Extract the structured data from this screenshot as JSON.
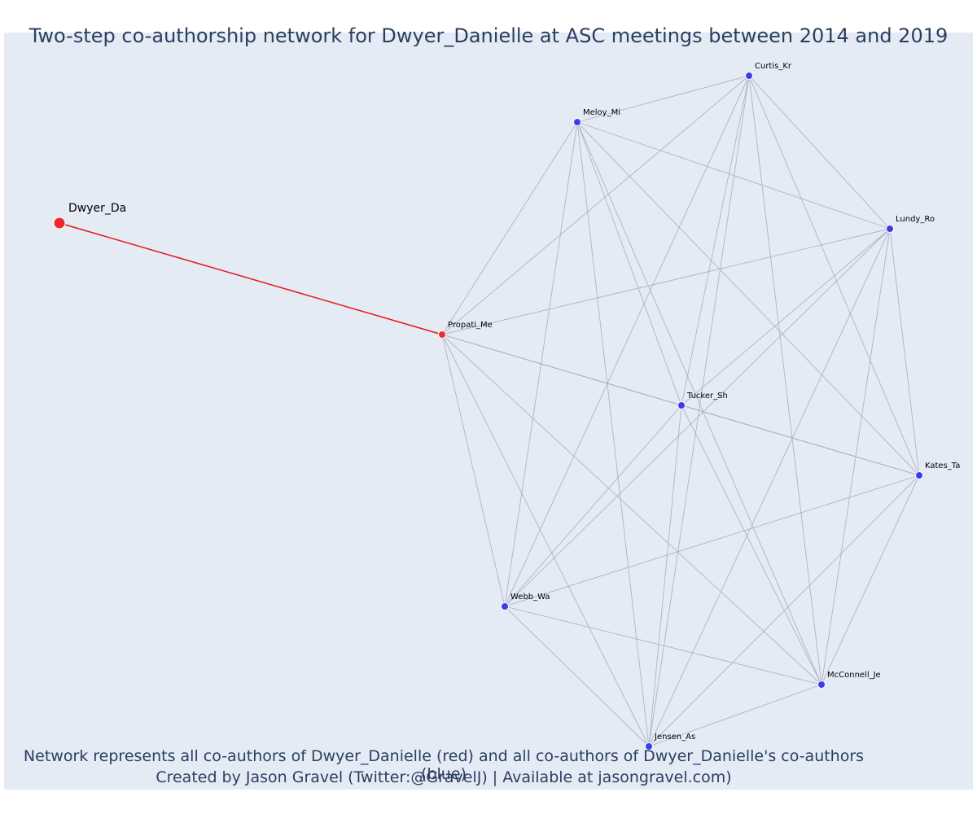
{
  "title": "Two-step co-authorship network for Dwyer_Danielle at ASC meetings between 2014 and 2019",
  "caption": {
    "line1": "Network represents all co-authors of Dwyer_Danielle (red) and all co-authors of Dwyer_Danielle's co-authors (blue)",
    "line2": "Created by Jason Gravel (Twitter:@GravelJ) | Available at jasongravel.com)"
  },
  "colors": {
    "background": "#e5ebf5",
    "ego_edge": "#e8161b",
    "edge": "#a6a9bc",
    "red_node": "#ec2a2f",
    "blue_node": "#3a3ee6",
    "text": "#2a3f5f"
  },
  "chart_data": {
    "type": "network",
    "nodes": [
      {
        "id": "Dwyer_Da",
        "label": "Dwyer_Da",
        "group": "red",
        "ego": true
      },
      {
        "id": "Propati_Me",
        "label": "Propati_Me",
        "group": "red"
      },
      {
        "id": "Curtis_Kr",
        "label": "Curtis_Kr",
        "group": "blue"
      },
      {
        "id": "Meloy_Mi",
        "label": "Meloy_Mi",
        "group": "blue"
      },
      {
        "id": "Lundy_Ro",
        "label": "Lundy_Ro",
        "group": "blue"
      },
      {
        "id": "Tucker_Sh",
        "label": "Tucker_Sh",
        "group": "blue"
      },
      {
        "id": "Kates_Ta",
        "label": "Kates_Ta",
        "group": "blue"
      },
      {
        "id": "Webb_Wa",
        "label": "Webb_Wa",
        "group": "blue"
      },
      {
        "id": "McConnell_Je",
        "label": "McConnell_Je",
        "group": "blue"
      },
      {
        "id": "Jensen_As",
        "label": "Jensen_As",
        "group": "blue"
      }
    ],
    "edges": [
      [
        "Dwyer_Da",
        "Propati_Me"
      ],
      [
        "Propati_Me",
        "Curtis_Kr"
      ],
      [
        "Propati_Me",
        "Meloy_Mi"
      ],
      [
        "Propati_Me",
        "Lundy_Ro"
      ],
      [
        "Propati_Me",
        "Tucker_Sh"
      ],
      [
        "Propati_Me",
        "Kates_Ta"
      ],
      [
        "Propati_Me",
        "Webb_Wa"
      ],
      [
        "Propati_Me",
        "McConnell_Je"
      ],
      [
        "Propati_Me",
        "Jensen_As"
      ],
      [
        "Curtis_Kr",
        "Meloy_Mi"
      ],
      [
        "Curtis_Kr",
        "Lundy_Ro"
      ],
      [
        "Curtis_Kr",
        "Tucker_Sh"
      ],
      [
        "Curtis_Kr",
        "Kates_Ta"
      ],
      [
        "Curtis_Kr",
        "Webb_Wa"
      ],
      [
        "Curtis_Kr",
        "McConnell_Je"
      ],
      [
        "Curtis_Kr",
        "Jensen_As"
      ],
      [
        "Meloy_Mi",
        "Lundy_Ro"
      ],
      [
        "Meloy_Mi",
        "Tucker_Sh"
      ],
      [
        "Meloy_Mi",
        "Kates_Ta"
      ],
      [
        "Meloy_Mi",
        "Webb_Wa"
      ],
      [
        "Meloy_Mi",
        "McConnell_Je"
      ],
      [
        "Meloy_Mi",
        "Jensen_As"
      ],
      [
        "Lundy_Ro",
        "Tucker_Sh"
      ],
      [
        "Lundy_Ro",
        "Kates_Ta"
      ],
      [
        "Lundy_Ro",
        "Webb_Wa"
      ],
      [
        "Lundy_Ro",
        "McConnell_Je"
      ],
      [
        "Lundy_Ro",
        "Jensen_As"
      ],
      [
        "Tucker_Sh",
        "Kates_Ta"
      ],
      [
        "Tucker_Sh",
        "Webb_Wa"
      ],
      [
        "Tucker_Sh",
        "McConnell_Je"
      ],
      [
        "Tucker_Sh",
        "Jensen_As"
      ],
      [
        "Kates_Ta",
        "Webb_Wa"
      ],
      [
        "Kates_Ta",
        "McConnell_Je"
      ],
      [
        "Kates_Ta",
        "Jensen_As"
      ],
      [
        "Webb_Wa",
        "McConnell_Je"
      ],
      [
        "Webb_Wa",
        "Jensen_As"
      ],
      [
        "McConnell_Je",
        "Jensen_As"
      ]
    ]
  }
}
